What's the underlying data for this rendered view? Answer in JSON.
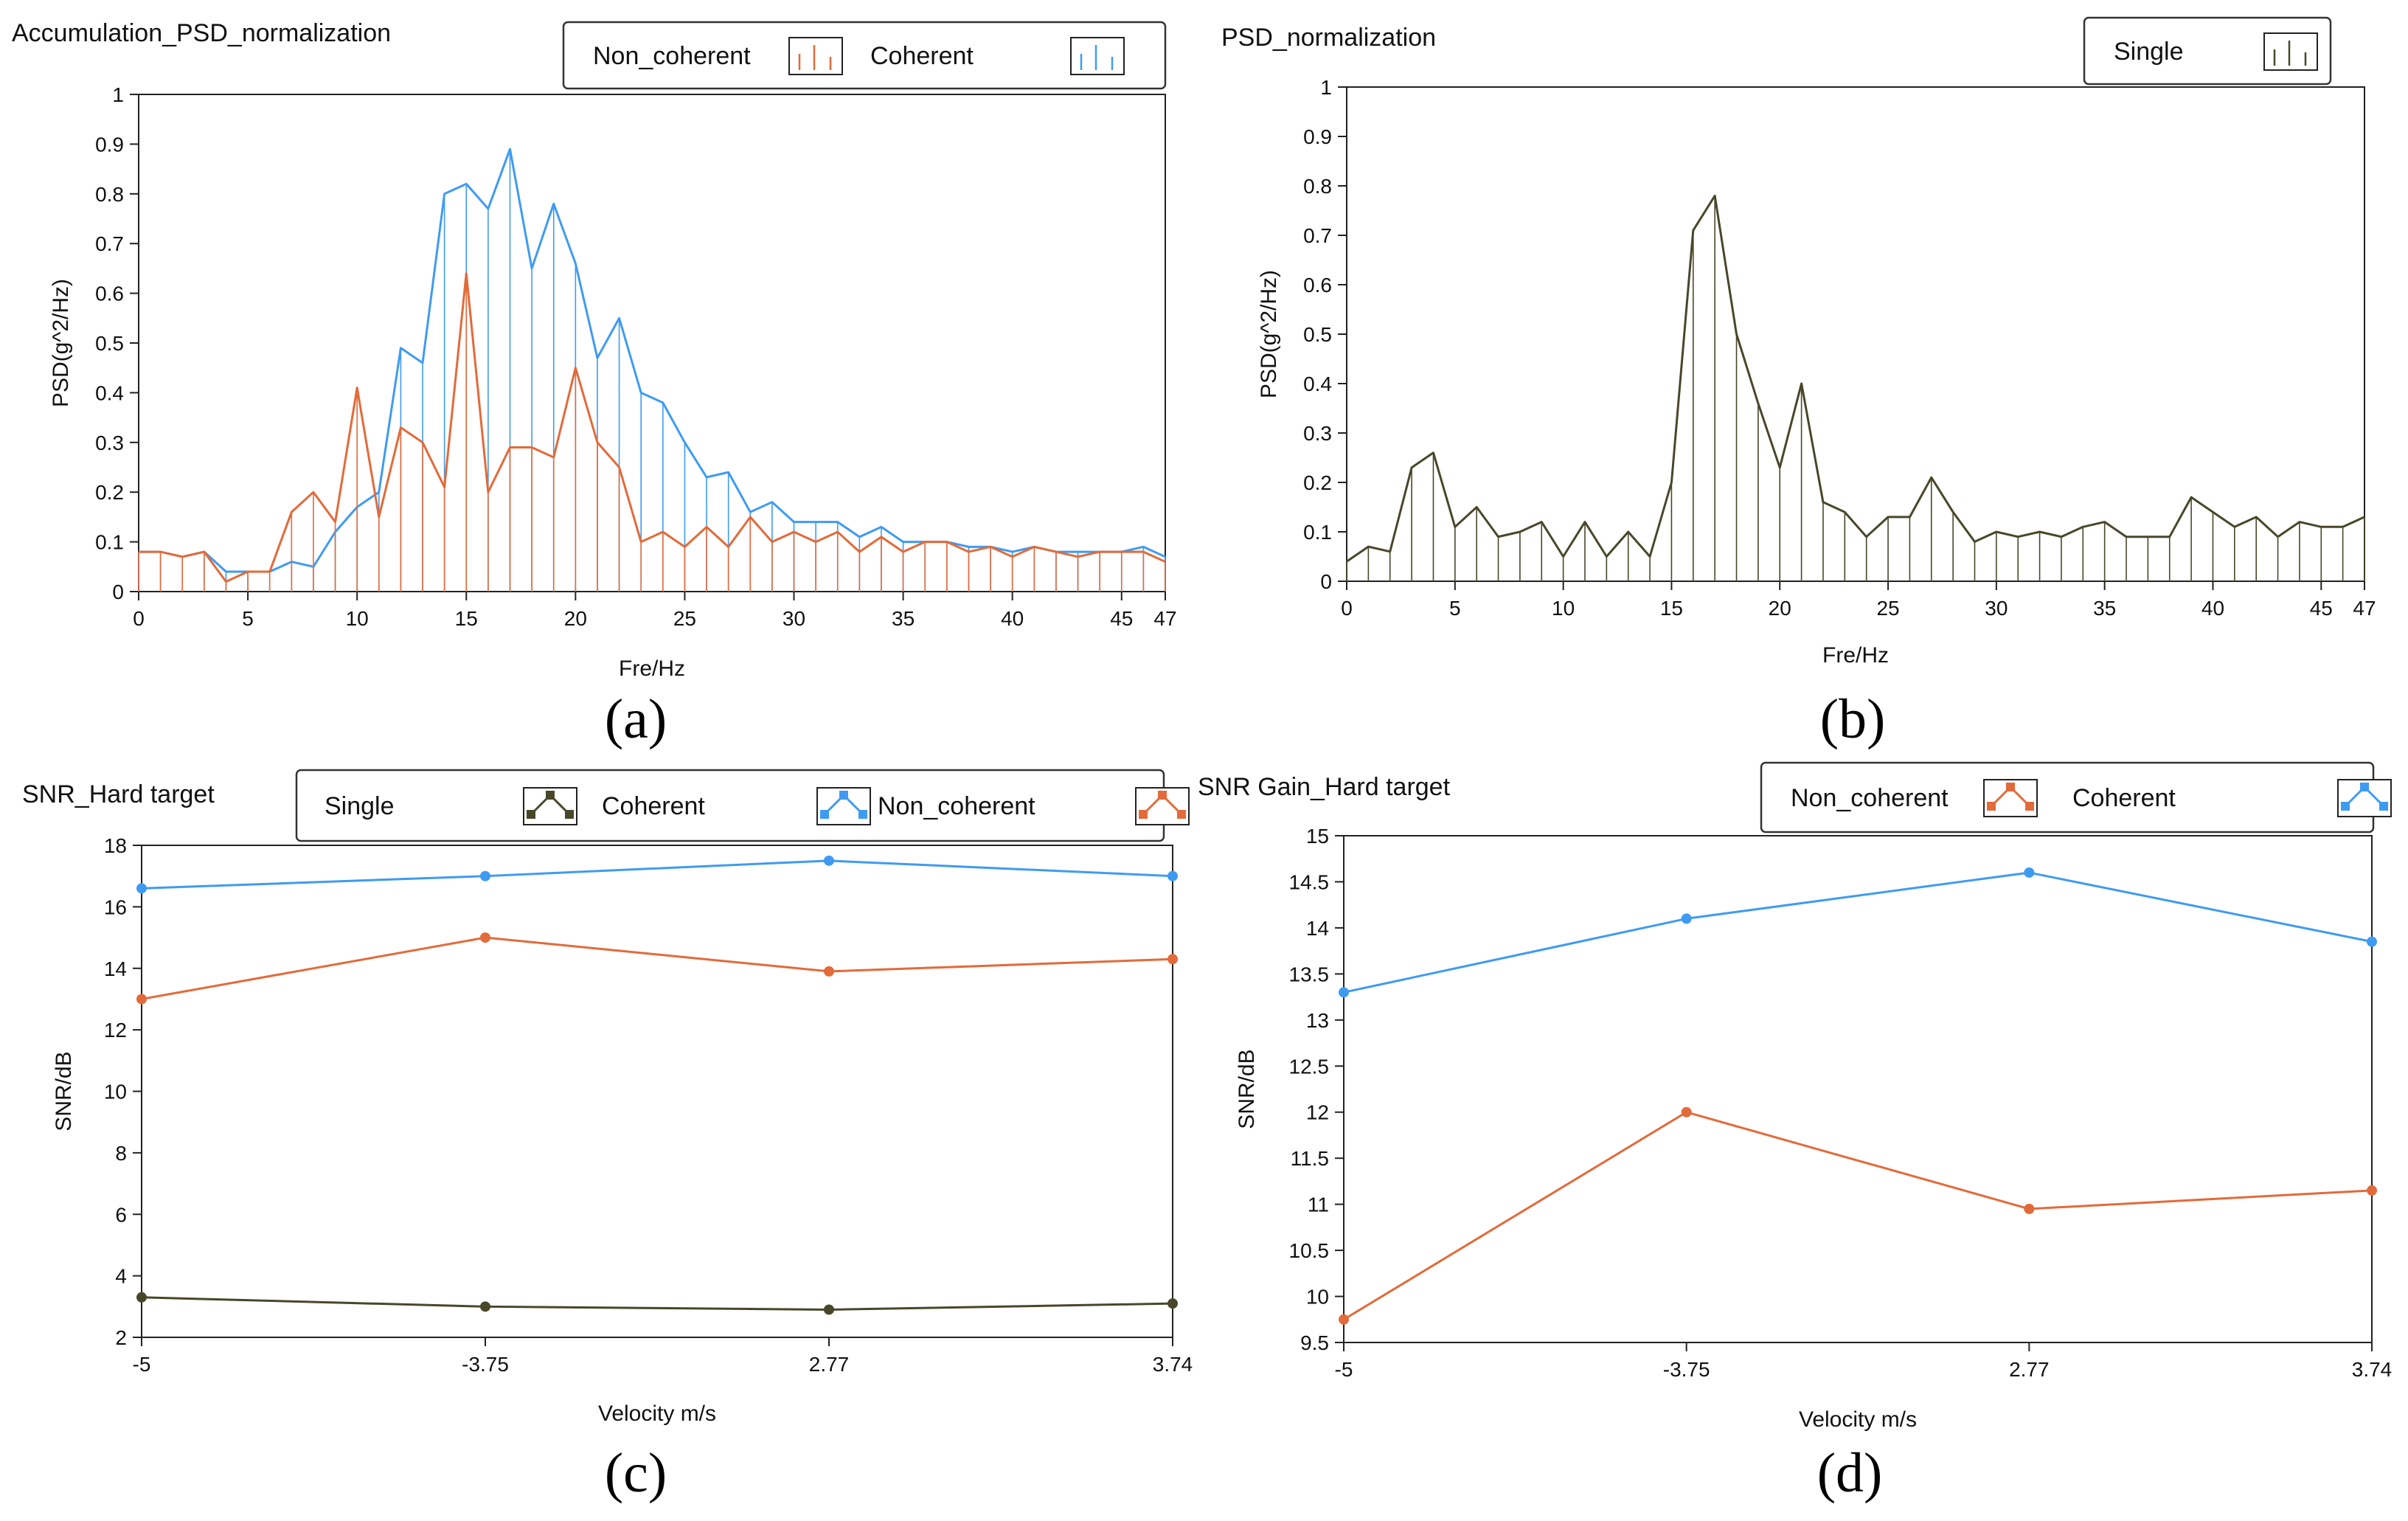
{
  "colors": {
    "blue": "#3f9bf1",
    "orange": "#e36a3a",
    "olive": "#49472a",
    "axis": "#222222",
    "legendBorder": "#333333"
  },
  "chart_data": [
    {
      "id": "a",
      "type": "line",
      "title": "Accumulation_PSD_normalization",
      "caption": "(a)",
      "xlabel": "Fre/Hz",
      "ylabel": "PSD(g^2/Hz)",
      "xlim": [
        0,
        47
      ],
      "ylim": [
        0,
        1
      ],
      "xticks": [
        0,
        5,
        10,
        15,
        20,
        25,
        30,
        35,
        40,
        45,
        47
      ],
      "yticks": [
        0,
        0.1,
        0.2,
        0.3,
        0.4,
        0.5,
        0.6,
        0.7,
        0.8,
        0.9,
        1
      ],
      "ytick_labels": [
        "0",
        "0.1",
        "0.2",
        "0.3",
        "0.4",
        "0.5",
        "0.6",
        "0.7",
        "0.8",
        "0.9",
        "1"
      ],
      "stems": true,
      "legend": [
        {
          "name": "Non_coherent",
          "color": "#e36a3a",
          "icon": "stem-plot-icon"
        },
        {
          "name": "Coherent",
          "color": "#3f9bf1",
          "icon": "stem-plot-icon"
        }
      ],
      "series": [
        {
          "name": "Coherent",
          "color": "#3f9bf1",
          "values": [
            0.08,
            0.08,
            0.07,
            0.08,
            0.04,
            0.04,
            0.04,
            0.06,
            0.05,
            0.12,
            0.17,
            0.2,
            0.49,
            0.46,
            0.8,
            0.82,
            0.77,
            0.89,
            0.65,
            0.78,
            0.66,
            0.47,
            0.55,
            0.4,
            0.38,
            0.3,
            0.23,
            0.24,
            0.16,
            0.18,
            0.14,
            0.14,
            0.14,
            0.11,
            0.13,
            0.1,
            0.1,
            0.1,
            0.09,
            0.09,
            0.08,
            0.09,
            0.08,
            0.08,
            0.08,
            0.08,
            0.09,
            0.07
          ]
        },
        {
          "name": "Non_coherent",
          "color": "#e36a3a",
          "values": [
            0.08,
            0.08,
            0.07,
            0.08,
            0.02,
            0.04,
            0.04,
            0.16,
            0.2,
            0.14,
            0.41,
            0.15,
            0.33,
            0.3,
            0.21,
            0.64,
            0.2,
            0.29,
            0.29,
            0.27,
            0.45,
            0.3,
            0.25,
            0.1,
            0.12,
            0.09,
            0.13,
            0.09,
            0.15,
            0.1,
            0.12,
            0.1,
            0.12,
            0.08,
            0.11,
            0.08,
            0.1,
            0.1,
            0.08,
            0.09,
            0.07,
            0.09,
            0.08,
            0.07,
            0.08,
            0.08,
            0.08,
            0.06
          ]
        }
      ]
    },
    {
      "id": "b",
      "type": "line",
      "title": "PSD_normalization",
      "caption": "(b)",
      "xlabel": "Fre/Hz",
      "ylabel": "PSD(g^2/Hz)",
      "xlim": [
        0,
        47
      ],
      "ylim": [
        0,
        1
      ],
      "xticks": [
        0,
        5,
        10,
        15,
        20,
        25,
        30,
        35,
        40,
        45,
        47
      ],
      "yticks": [
        0,
        0.1,
        0.2,
        0.3,
        0.4,
        0.5,
        0.6,
        0.7,
        0.8,
        0.9,
        1
      ],
      "ytick_labels": [
        "0",
        "0.1",
        "0.2",
        "0.3",
        "0.4",
        "0.5",
        "0.6",
        "0.7",
        "0.8",
        "0.9",
        "1"
      ],
      "stems": true,
      "legend": [
        {
          "name": "Single",
          "color": "#49472a",
          "icon": "stem-plot-icon"
        }
      ],
      "series": [
        {
          "name": "Single",
          "color": "#49472a",
          "values": [
            0.04,
            0.07,
            0.06,
            0.23,
            0.26,
            0.11,
            0.15,
            0.09,
            0.1,
            0.12,
            0.05,
            0.12,
            0.05,
            0.1,
            0.05,
            0.2,
            0.71,
            0.78,
            0.5,
            0.36,
            0.23,
            0.4,
            0.16,
            0.14,
            0.09,
            0.13,
            0.13,
            0.21,
            0.14,
            0.08,
            0.1,
            0.09,
            0.1,
            0.09,
            0.11,
            0.12,
            0.09,
            0.09,
            0.09,
            0.17,
            0.14,
            0.11,
            0.13,
            0.09,
            0.12,
            0.11,
            0.11,
            0.13
          ]
        }
      ]
    },
    {
      "id": "c",
      "type": "line",
      "title": "SNR_Hard target",
      "caption": "(c)",
      "xlabel": "Velocity  m/s",
      "ylabel": "SNR/dB",
      "categories": [
        "-5",
        "-3.75",
        "2.77",
        "3.74"
      ],
      "ylim": [
        2,
        18
      ],
      "yticks": [
        2,
        4,
        6,
        8,
        10,
        12,
        14,
        16,
        18
      ],
      "ytick_labels": [
        "2",
        "4",
        "6",
        "8",
        "10",
        "12",
        "14",
        "16",
        "18"
      ],
      "stems": false,
      "legend": [
        {
          "name": "Single",
          "color": "#49472a",
          "icon": "line-marker-icon"
        },
        {
          "name": "Coherent",
          "color": "#3f9bf1",
          "icon": "line-marker-icon"
        },
        {
          "name": "Non_coherent",
          "color": "#e36a3a",
          "icon": "line-marker-icon"
        }
      ],
      "series": [
        {
          "name": "Coherent",
          "color": "#3f9bf1",
          "values": [
            16.6,
            17.0,
            17.5,
            17.0
          ]
        },
        {
          "name": "Non_coherent",
          "color": "#e36a3a",
          "values": [
            13.0,
            15.0,
            13.9,
            14.3
          ]
        },
        {
          "name": "Single",
          "color": "#49472a",
          "values": [
            3.3,
            3.0,
            2.9,
            3.1
          ]
        }
      ]
    },
    {
      "id": "d",
      "type": "line",
      "title": "SNR Gain_Hard target",
      "caption": "(d)",
      "xlabel": "Velocity  m/s",
      "ylabel": "SNR/dB",
      "categories": [
        "-5",
        "-3.75",
        "2.77",
        "3.74"
      ],
      "ylim": [
        9.5,
        15
      ],
      "yticks": [
        9.5,
        10,
        10.5,
        11,
        11.5,
        12,
        12.5,
        13,
        13.5,
        14,
        14.5,
        15
      ],
      "ytick_labels": [
        "9.5",
        "10",
        "10.5",
        "11",
        "11.5",
        "12",
        "12.5",
        "13",
        "13.5",
        "14",
        "14.5",
        "15"
      ],
      "stems": false,
      "legend": [
        {
          "name": "Non_coherent",
          "color": "#e36a3a",
          "icon": "line-marker-icon"
        },
        {
          "name": "Coherent",
          "color": "#3f9bf1",
          "icon": "line-marker-icon"
        }
      ],
      "series": [
        {
          "name": "Coherent",
          "color": "#3f9bf1",
          "values": [
            13.3,
            14.1,
            14.6,
            13.85
          ]
        },
        {
          "name": "Non_coherent",
          "color": "#e36a3a",
          "values": [
            9.75,
            12.0,
            10.95,
            11.15
          ]
        }
      ]
    }
  ]
}
